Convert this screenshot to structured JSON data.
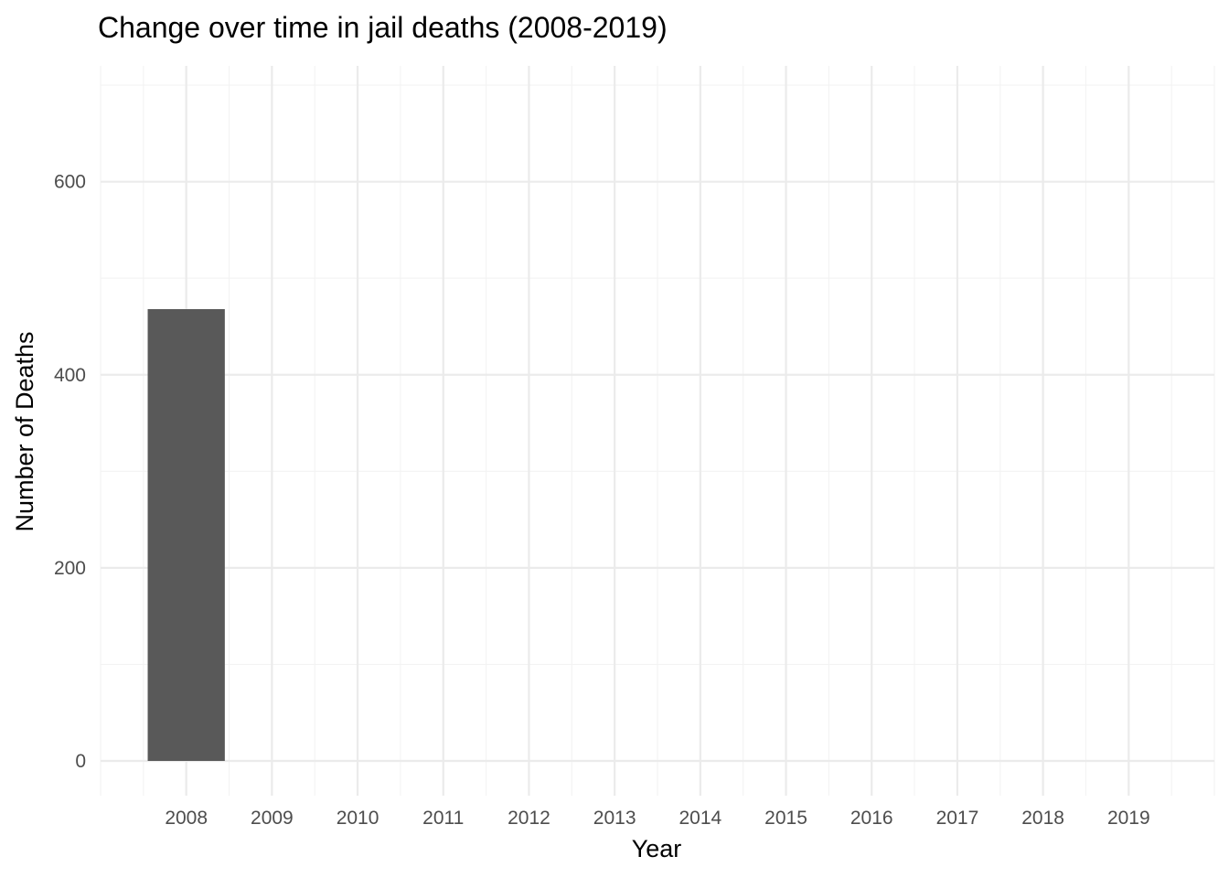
{
  "chart_data": {
    "type": "bar",
    "title": "Change over time in jail deaths (2008-2019)",
    "xlabel": "Year",
    "ylabel": "Number of Deaths",
    "categories": [
      "2008",
      "2009",
      "2010",
      "2011",
      "2012",
      "2013",
      "2014",
      "2015",
      "2016",
      "2017",
      "2018",
      "2019"
    ],
    "values": [
      468,
      0,
      0,
      0,
      0,
      0,
      0,
      0,
      0,
      0,
      0,
      0
    ],
    "ylim": [
      -36,
      720
    ],
    "y_ticks": [
      0,
      200,
      400,
      600
    ],
    "y_tick_labels": [
      "0",
      "200",
      "400",
      "600"
    ],
    "y_minor_ticks": [
      100,
      300,
      500,
      700
    ],
    "x_domain": [
      2007.0,
      2020.0
    ],
    "x_minor_ticks": [
      2007.0,
      2007.5,
      2008.5,
      2009.5,
      2010.5,
      2011.5,
      2012.5,
      2013.5,
      2014.5,
      2015.5,
      2016.5,
      2017.5,
      2018.5,
      2019.5,
      2020.0
    ],
    "bar_width": 0.9,
    "grid": true,
    "legend": "none",
    "colors": {
      "bar": "#595959",
      "grid_major": "#ebebeb",
      "grid_minor": "#f3f3f3",
      "tick_text": "#4d4d4d",
      "title_text": "#000000",
      "background": "#ffffff"
    }
  }
}
